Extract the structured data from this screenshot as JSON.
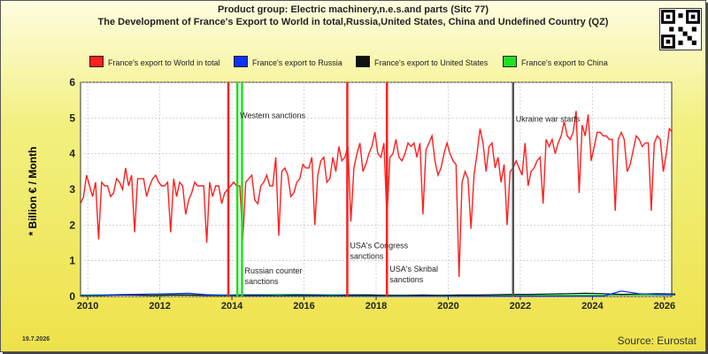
{
  "title_line1": "Product group: Electric machinery,n.e.s.and parts (Sitc 77)",
  "title_line2": "The Development of France's Export to World in total,Russia,United States, China and Undefined Country (QZ)",
  "legend": [
    {
      "label": "France's export to World in total",
      "color": "#ff2020"
    },
    {
      "label": "France's export to Russia",
      "color": "#1030ff"
    },
    {
      "label": "France's export to United States",
      "color": "#111111"
    },
    {
      "label": "France's export to China",
      "color": "#20e020"
    }
  ],
  "date_stamp": "19.7.2026",
  "source": "Source: Eurostat",
  "chart_data": {
    "type": "line",
    "ylabel": "* Billion € / Month",
    "xlim": [
      2009.8,
      2026.2
    ],
    "ylim": [
      0,
      6
    ],
    "xticks": [
      "2010",
      "2012",
      "2014",
      "2016",
      "2018",
      "2020",
      "2022",
      "2024",
      "2026"
    ],
    "yticks": [
      "0",
      "1",
      "2",
      "3",
      "4",
      "5",
      "6"
    ],
    "grid": true,
    "series": [
      {
        "name": "France's export to World in total",
        "color": "#ff2020",
        "start": 2009.8,
        "step": 0.08333,
        "values": [
          2.6,
          2.8,
          3.4,
          3.1,
          2.8,
          3.2,
          1.6,
          3.2,
          3.1,
          3.1,
          2.8,
          2.9,
          3.3,
          3.2,
          3.0,
          3.6,
          3.1,
          3.4,
          1.8,
          3.3,
          3.3,
          3.3,
          2.8,
          3.1,
          3.3,
          3.4,
          3.2,
          3.1,
          3.1,
          3.2,
          1.8,
          3.3,
          2.8,
          3.2,
          3.1,
          2.3,
          2.7,
          2.9,
          3.2,
          3.1,
          3.1,
          3.1,
          1.5,
          3.2,
          2.8,
          3.1,
          3.1,
          2.6,
          2.9,
          3.0,
          3.1,
          3.2,
          3.1,
          3.1,
          1.6,
          3.2,
          3.3,
          3.4,
          2.7,
          2.6,
          3.1,
          3.2,
          3.4,
          3.1,
          3.1,
          3.9,
          1.7,
          3.5,
          3.6,
          3.4,
          2.8,
          2.9,
          3.2,
          3.3,
          3.7,
          3.6,
          3.6,
          3.9,
          2.0,
          3.4,
          3.8,
          3.9,
          3.2,
          3.3,
          3.9,
          3.5,
          4.2,
          3.8,
          3.9,
          4.2,
          2.1,
          3.6,
          4.0,
          4.3,
          3.5,
          3.7,
          4.0,
          4.2,
          4.6,
          4.0,
          3.9,
          4.3,
          2.2,
          3.9,
          4.0,
          4.4,
          3.9,
          3.8,
          4.0,
          4.3,
          4.2,
          4.3,
          3.9,
          4.3,
          2.3,
          4.1,
          4.3,
          4.5,
          3.8,
          3.4,
          3.6,
          4.0,
          4.3,
          4.0,
          3.8,
          3.7,
          0.55,
          3.2,
          3.5,
          3.3,
          1.9,
          3.4,
          4.0,
          4.7,
          4.3,
          3.5,
          4.2,
          4.3,
          3.6,
          3.9,
          3.2,
          3.7,
          2.0,
          3.5,
          3.6,
          3.8,
          3.6,
          3.4,
          4.3,
          3.1,
          3.5,
          3.6,
          3.8,
          3.9,
          2.6,
          4.4,
          4.2,
          4.4,
          4.0,
          4.3,
          4.5,
          4.9,
          4.5,
          4.4,
          4.6,
          5.2,
          2.9,
          4.8,
          4.5,
          5.1,
          3.8,
          4.2,
          4.6,
          4.6,
          4.5,
          4.5,
          4.4,
          4.4,
          2.4,
          4.4,
          4.6,
          4.4,
          3.5,
          3.7,
          4.1,
          4.5,
          4.4,
          4.2,
          4.3,
          4.3,
          2.4,
          4.3,
          4.5,
          4.4,
          3.5,
          4.0,
          4.7,
          4.6
        ]
      },
      {
        "name": "France's export to Russia",
        "color": "#1030ff",
        "start": 2009.8,
        "step": 0.5,
        "values": [
          0.02,
          0.03,
          0.05,
          0.06,
          0.07,
          0.08,
          0.09,
          0.05,
          0.03,
          0.02,
          0.02,
          0.02,
          0.02,
          0.02,
          0.02,
          0.02,
          0.01,
          0.01,
          0.01,
          0.01,
          0.01,
          0.01,
          0.01,
          0.01,
          0.01,
          0.01,
          0.01,
          0.01,
          0.01,
          0.01,
          0.15,
          0.08,
          0.06,
          0.05
        ]
      },
      {
        "name": "France's export to United States",
        "color": "#111111",
        "start": 2009.8,
        "step": 0.5,
        "values": [
          0.03,
          0.03,
          0.04,
          0.04,
          0.03,
          0.04,
          0.04,
          0.03,
          0.03,
          0.04,
          0.04,
          0.03,
          0.04,
          0.04,
          0.03,
          0.04,
          0.04,
          0.03,
          0.03,
          0.04,
          0.03,
          0.04,
          0.04,
          0.05,
          0.06,
          0.06,
          0.07,
          0.08,
          0.09,
          0.08,
          0.06,
          0.07,
          0.08,
          0.07
        ]
      },
      {
        "name": "France's export to China",
        "color": "#20e020",
        "start": 2009.8,
        "step": 0.5,
        "values": [
          0.04,
          0.05,
          0.05,
          0.06,
          0.06,
          0.06,
          0.05,
          0.05,
          0.05,
          0.05,
          0.05,
          0.06,
          0.06,
          0.05,
          0.05,
          0.05,
          0.05,
          0.04,
          0.04,
          0.04,
          0.04,
          0.04,
          0.04,
          0.04,
          0.04,
          0.04,
          0.04,
          0.04,
          0.04,
          0.04,
          0.04,
          0.04,
          0.04,
          0.04
        ]
      }
    ],
    "events": [
      {
        "x": 2013.9,
        "color": "#ff2020",
        "label": "",
        "label_y": null
      },
      {
        "x": 2014.15,
        "color": "#20e020",
        "label": "Western sanctions",
        "label_y": 5.0
      },
      {
        "x": 2014.28,
        "color": "#20e020",
        "label": "Russian counter sanctions",
        "label_y": 0.65
      },
      {
        "x": 2017.2,
        "color": "#ff2020",
        "label": "USA's Congress sanctions",
        "label_y": 1.35
      },
      {
        "x": 2018.3,
        "color": "#ff2020",
        "label": "USA's Skribal sanctions",
        "label_y": 0.7
      },
      {
        "x": 2021.8,
        "color": "#555555",
        "label": "Ukraine war starts",
        "label_y": 4.9
      }
    ]
  }
}
